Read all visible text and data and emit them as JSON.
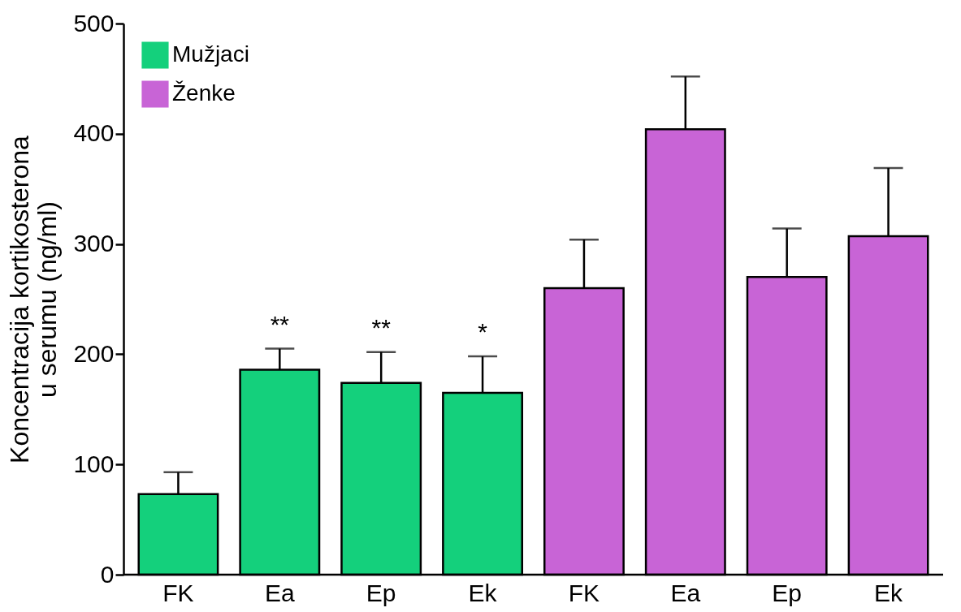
{
  "chart_data": {
    "type": "bar",
    "ylabel": "Koncentracija kortikosterona\nu serumu (ng/ml)",
    "categories": [
      "FK",
      "Ea",
      "Ep",
      "Ek",
      "FK",
      "Ea",
      "Ep",
      "Ek"
    ],
    "series": [
      {
        "name": "Mužjaci",
        "color": "#14d07c",
        "values": [
          73,
          186,
          174,
          165,
          null,
          null,
          null,
          null
        ],
        "errors": [
          [
            73,
            93
          ],
          [
            186,
            205
          ],
          [
            174,
            202
          ],
          [
            165,
            198
          ],
          null,
          null,
          null,
          null
        ]
      },
      {
        "name": "Ženke",
        "color": "#c864d6",
        "values": [
          null,
          null,
          null,
          null,
          260,
          404,
          270,
          307
        ],
        "errors": [
          null,
          null,
          null,
          null,
          [
            260,
            304
          ],
          [
            404,
            452
          ],
          [
            270,
            314
          ],
          [
            307,
            369
          ]
        ]
      }
    ],
    "ylim": [
      0,
      500
    ],
    "yticks": [
      0,
      100,
      200,
      300,
      400,
      500
    ],
    "grid": false,
    "legend": "top left",
    "annotations": [
      {
        "text": "**",
        "x": "Ea",
        "y": 205
      },
      {
        "text": "**",
        "x": "Ep",
        "y": 202
      },
      {
        "text": "*",
        "x": "Ek",
        "y": 198
      }
    ]
  }
}
